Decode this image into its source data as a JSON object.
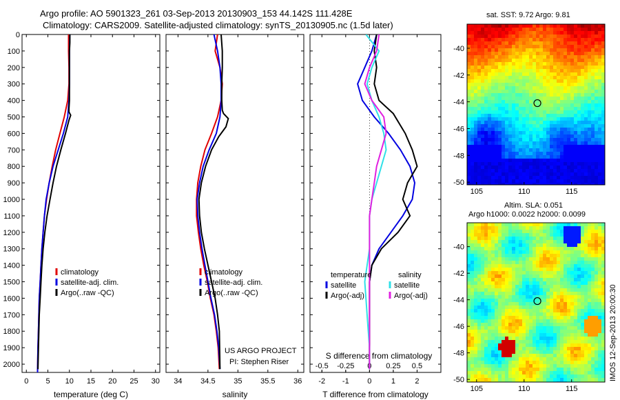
{
  "title_line1": "Argo profile: AO 5901323_261 03-Sep-2013 20130903_153 44.142S 111.428E",
  "title_line2": "Climatology: CARS2009. Satellite-adjusted climatology: synTS_20130905.nc (1.5d later)",
  "credit_line1": "US ARGO PROJECT",
  "credit_line2": "PI: Stephen Riser",
  "map1_title": "sat. SST: 9.72 Argo: 9.81",
  "map2_title_line1": "Altim. SLA: 0.051",
  "map2_title_line2": "Argo h1000: 0.0022 h2000: 0.0099",
  "vertical_stamp": "IMOS 12-Sep-2013 20:00:30",
  "colors": {
    "climatology": "#e00000",
    "satellite": "#0000e0",
    "argo": "#000000",
    "salinity_sat": "#30e0e8",
    "salinity_argo": "#e020e0"
  },
  "chart_data": [
    {
      "type": "line",
      "xlabel": "temperature (deg C)",
      "ylim": [
        2050,
        0
      ],
      "xlim": [
        -1,
        31
      ],
      "xticks": [
        0,
        5,
        10,
        15,
        20,
        25,
        30
      ],
      "yticks": [
        0,
        100,
        200,
        300,
        400,
        500,
        600,
        700,
        800,
        900,
        1000,
        1100,
        1200,
        1300,
        1400,
        1500,
        1600,
        1700,
        1800,
        1900,
        2000
      ],
      "legend": [
        "climatology",
        "satellite-adj. clim.",
        "Argo(..raw -QC)"
      ],
      "series": [
        {
          "name": "climatology",
          "color": "#e00000",
          "x": [
            9.8,
            9.8,
            9.9,
            9.9,
            9.6,
            8.8,
            7.8,
            6.8,
            6.0,
            5.3,
            4.7,
            4.2,
            3.9,
            3.6,
            3.4,
            3.2,
            3.0,
            2.9,
            2.8,
            2.7,
            2.6
          ],
          "y": [
            0,
            100,
            200,
            300,
            400,
            500,
            600,
            700,
            800,
            900,
            1000,
            1100,
            1200,
            1300,
            1400,
            1500,
            1600,
            1700,
            1800,
            1900,
            2050
          ]
        },
        {
          "name": "satellite-adj. clim.",
          "color": "#0000e0",
          "x": [
            10.1,
            10.0,
            10.0,
            10.0,
            9.9,
            9.6,
            8.6,
            7.4,
            6.2,
            5.3,
            4.6,
            4.2,
            3.9,
            3.6,
            3.4,
            3.2,
            3.0,
            2.9,
            2.8,
            2.7,
            2.6
          ],
          "y": [
            0,
            100,
            200,
            300,
            400,
            500,
            600,
            700,
            800,
            900,
            1000,
            1100,
            1200,
            1300,
            1400,
            1500,
            1600,
            1700,
            1800,
            1900,
            2050
          ]
        },
        {
          "name": "Argo(..raw -QC)",
          "color": "#000000",
          "x": [
            10.1,
            10.1,
            10.0,
            10.0,
            10.0,
            10.0,
            9.9,
            9.9,
            10.3,
            9.9,
            9.1,
            8.0,
            7.0,
            6.2,
            5.5,
            4.8,
            4.3,
            3.9,
            3.6,
            3.4,
            3.2,
            3.0,
            2.9,
            2.8,
            2.7
          ],
          "y": [
            0,
            50,
            100,
            200,
            300,
            400,
            450,
            470,
            490,
            520,
            600,
            700,
            800,
            900,
            1000,
            1100,
            1200,
            1300,
            1400,
            1500,
            1600,
            1700,
            1800,
            1900,
            2030
          ]
        }
      ]
    },
    {
      "type": "line",
      "xlabel": "salinity",
      "ylim": [
        2050,
        0
      ],
      "xlim": [
        33.8,
        36.1
      ],
      "xticks": [
        34,
        34.5,
        35,
        35.5,
        36
      ],
      "xticklabels": [
        "34",
        "34.5",
        "35",
        "35.5",
        "36"
      ],
      "legend": [
        "climatology",
        "satellite-adj. clim.",
        "Argo(..raw -QC)"
      ],
      "series": [
        {
          "name": "climatology",
          "color": "#e00000",
          "x": [
            34.66,
            34.62,
            34.7,
            34.74,
            34.72,
            34.66,
            34.56,
            34.45,
            34.38,
            34.33,
            34.31,
            34.31,
            34.34,
            34.38,
            34.43,
            34.49,
            34.54,
            34.6,
            34.64,
            34.67,
            34.69
          ],
          "y": [
            0,
            100,
            200,
            300,
            400,
            500,
            600,
            700,
            800,
            900,
            1000,
            1100,
            1200,
            1300,
            1400,
            1500,
            1600,
            1700,
            1800,
            1900,
            2030
          ]
        },
        {
          "name": "satellite-adj. clim.",
          "color": "#0000e0",
          "x": [
            34.6,
            34.66,
            34.7,
            34.72,
            34.72,
            34.7,
            34.64,
            34.52,
            34.42,
            34.36,
            34.32,
            34.33,
            34.36,
            34.4,
            34.45,
            34.5,
            34.55,
            34.61,
            34.65,
            34.68,
            34.7
          ],
          "y": [
            0,
            100,
            200,
            300,
            400,
            500,
            600,
            700,
            800,
            900,
            1000,
            1100,
            1200,
            1300,
            1400,
            1500,
            1600,
            1700,
            1800,
            1900,
            2030
          ]
        },
        {
          "name": "Argo(..raw -QC)",
          "color": "#000000",
          "x": [
            34.72,
            34.74,
            34.74,
            34.73,
            34.73,
            34.74,
            34.76,
            34.84,
            34.8,
            34.68,
            34.56,
            34.46,
            34.39,
            34.35,
            34.36,
            34.39,
            34.44,
            34.5,
            34.56,
            34.62,
            34.66,
            34.69,
            34.7
          ],
          "y": [
            0,
            100,
            200,
            300,
            400,
            460,
            480,
            510,
            560,
            620,
            700,
            800,
            900,
            1000,
            1100,
            1200,
            1300,
            1400,
            1500,
            1600,
            1700,
            1800,
            2030
          ]
        }
      ]
    },
    {
      "type": "line",
      "xlabel": "T difference from climatology",
      "top_label": "S difference from climatology",
      "ylim": [
        2050,
        0
      ],
      "xlim": [
        -2.5,
        3.0
      ],
      "xticks": [
        -2,
        -1,
        0,
        1,
        2
      ],
      "top_ticks": [
        -0.5,
        -0.25,
        0,
        0.25,
        0.5
      ],
      "legend_groups": [
        {
          "title": "temperature",
          "items": [
            "satellite",
            "Argo(-adj)"
          ]
        },
        {
          "title": "salinity",
          "items": [
            "satellite",
            "Argo(-adj)"
          ]
        }
      ],
      "series": [
        {
          "name": "temperature satellite",
          "color": "#0000e0",
          "x": [
            0.3,
            0.1,
            -0.2,
            -0.5,
            -0.3,
            0.2,
            0.8,
            1.3,
            1.7,
            1.9,
            1.8,
            1.4,
            0.9,
            0.4,
            0.1,
            0.0,
            0.0,
            0.0,
            0.0,
            0.0,
            0.0
          ],
          "y": [
            0,
            100,
            200,
            300,
            400,
            500,
            600,
            700,
            800,
            900,
            1000,
            1100,
            1200,
            1300,
            1400,
            1500,
            1600,
            1700,
            1800,
            1900,
            2030
          ]
        },
        {
          "name": "temperature Argo(-adj)",
          "color": "#000000",
          "x": [
            0.3,
            0.2,
            0.3,
            0.2,
            0.4,
            1.0,
            1.5,
            1.8,
            2.0,
            1.6,
            1.4,
            1.7,
            1.2,
            0.5,
            0.1,
            0.0,
            0.0,
            0.0,
            0.0,
            0.0,
            0.0
          ],
          "y": [
            0,
            100,
            200,
            300,
            400,
            480,
            600,
            700,
            800,
            900,
            1000,
            1100,
            1200,
            1300,
            1400,
            1500,
            1600,
            1700,
            1800,
            1900,
            2030
          ]
        },
        {
          "name": "salinity satellite",
          "color": "#30e0e8",
          "x": [
            -0.15,
            0.4,
            0.1,
            -0.1,
            0.1,
            0.4,
            0.6,
            0.7,
            0.5,
            0.3,
            0.1,
            0.0,
            0.0,
            0.0,
            -0.1,
            -0.2,
            -0.15,
            -0.1,
            -0.05,
            0.0,
            0.0
          ],
          "y": [
            0,
            100,
            200,
            300,
            400,
            500,
            600,
            700,
            800,
            900,
            1000,
            1100,
            1200,
            1300,
            1400,
            1500,
            1600,
            1700,
            1800,
            1900,
            2030
          ]
        },
        {
          "name": "salinity Argo(-adj)",
          "color": "#e020e0",
          "x": [
            0.4,
            0.3,
            0.0,
            -0.2,
            0.1,
            0.6,
            0.7,
            0.5,
            0.3,
            0.2,
            0.1,
            0.0,
            0.0,
            0.0,
            0.0,
            0.0,
            0.0,
            0.0,
            0.0,
            0.0,
            0.0
          ],
          "y": [
            0,
            100,
            200,
            300,
            400,
            500,
            600,
            700,
            800,
            900,
            1000,
            1100,
            1200,
            1300,
            1400,
            1500,
            1600,
            1700,
            1800,
            1900,
            2030
          ]
        }
      ]
    },
    {
      "type": "heatmap",
      "xlim": [
        104,
        118.5
      ],
      "ylim": [
        -50.2,
        -38.2
      ],
      "xticks": [
        105,
        110,
        115
      ],
      "yticks": [
        -40,
        -42,
        -44,
        -46,
        -48,
        -50
      ],
      "marker": {
        "x": 111.4,
        "y": -44.1
      }
    },
    {
      "type": "heatmap",
      "xlim": [
        104,
        118.5
      ],
      "ylim": [
        -50.2,
        -38.2
      ],
      "xticks": [
        105,
        110,
        115
      ],
      "yticks": [
        -40,
        -42,
        -44,
        -46,
        -48,
        -50
      ],
      "marker": {
        "x": 111.4,
        "y": -44.1
      }
    }
  ]
}
